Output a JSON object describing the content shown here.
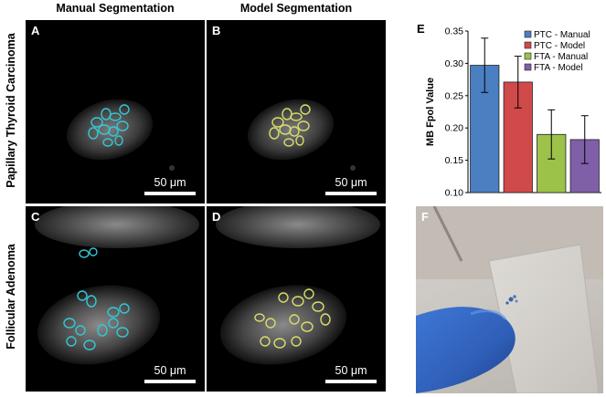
{
  "columns": {
    "manual": "Manual Segmentation",
    "model": "Model Segmentation"
  },
  "rows": {
    "ptc": "Papillary Thyroid Carcinoma",
    "fta": "Follicular Adenoma"
  },
  "panels": {
    "a": {
      "letter": "A",
      "scale": "50 μm"
    },
    "b": {
      "letter": "B",
      "scale": "50 μm"
    },
    "c": {
      "letter": "C",
      "scale": "50 μm"
    },
    "d": {
      "letter": "D",
      "scale": "50 μm"
    },
    "f": {
      "letter": "F"
    }
  },
  "colors": {
    "manual_outline": "#35c6d6",
    "model_outline": "#d8dc6a",
    "ptc_manual": "#4a7fc1",
    "ptc_model": "#d04a4a",
    "fta_manual": "#9cc24a",
    "fta_model": "#7f5fa8"
  },
  "chart_data": {
    "panel_letter": "E",
    "type": "bar",
    "ylabel": "MB Fpol Value",
    "ylim": [
      0.1,
      0.35
    ],
    "yticks": [
      "0.10",
      "0.15",
      "0.20",
      "0.25",
      "0.30",
      "0.35"
    ],
    "legend_position": "top-right",
    "series": [
      {
        "name": "PTC - Manual",
        "value": 0.297,
        "error": 0.042,
        "color": "#4a7fc1"
      },
      {
        "name": "PTC - Model",
        "value": 0.271,
        "error": 0.04,
        "color": "#d04a4a"
      },
      {
        "name": "FTA - Manual",
        "value": 0.19,
        "error": 0.038,
        "color": "#9cc24a"
      },
      {
        "name": "FTA - Model",
        "value": 0.182,
        "error": 0.037,
        "color": "#7f5fa8"
      }
    ]
  }
}
